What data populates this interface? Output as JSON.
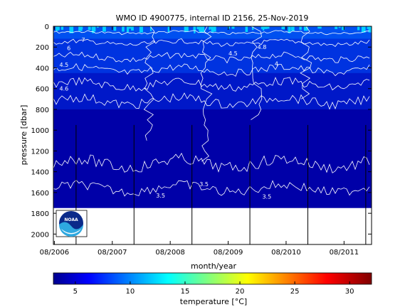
{
  "chart_data": {
    "type": "heatmap",
    "title": "WMO ID 4900775, internal ID 2156, 25-Nov-2019",
    "xlabel": "month/year",
    "ylabel": "pressure [dbar]",
    "x_ticks": [
      "08/2006",
      "08/2007",
      "08/2008",
      "08/2009",
      "08/2010",
      "08/2011"
    ],
    "y_ticks": [
      0,
      200,
      400,
      600,
      800,
      1000,
      1200,
      1400,
      1600,
      1800,
      2000
    ],
    "ylim": [
      0,
      2100
    ],
    "y_reversed": true,
    "colorbar": {
      "label": "temperature [°C]",
      "ticks": [
        5,
        10,
        15,
        20,
        25,
        30
      ],
      "range": [
        3,
        32
      ],
      "colormap": "jet"
    },
    "contour_labels": [
      {
        "x": "11/2006",
        "y": 230,
        "text": "6"
      },
      {
        "x": "02/2007",
        "y": 150,
        "text": "7"
      },
      {
        "x": "10/2006",
        "y": 390,
        "text": "4.5"
      },
      {
        "x": "10/2006",
        "y": 620,
        "text": "4.6"
      },
      {
        "x": "03/2009",
        "y": 1540,
        "text": "3.5"
      },
      {
        "x": "06/2008",
        "y": 1650,
        "text": "3.5"
      },
      {
        "x": "04/2010",
        "y": 1660,
        "text": "3.5"
      },
      {
        "x": "03/2010",
        "y": 220,
        "text": "4.8"
      },
      {
        "x": "06/2010",
        "y": 380,
        "text": "4"
      },
      {
        "x": "09/2009",
        "y": 280,
        "text": "4.5"
      }
    ],
    "profile_bottom_dbar": 1750,
    "max_pressure_dbar": 2000,
    "data_start": "08/2006",
    "data_end": "01/2012"
  },
  "colors": {
    "deep": "#0000a8",
    "mid": "#0018c8",
    "upper": "#0033e0",
    "surface": "#0050f0",
    "warm": "#00d0ff",
    "contour": "#ffffff"
  },
  "logo": {
    "text": "NOAA"
  }
}
